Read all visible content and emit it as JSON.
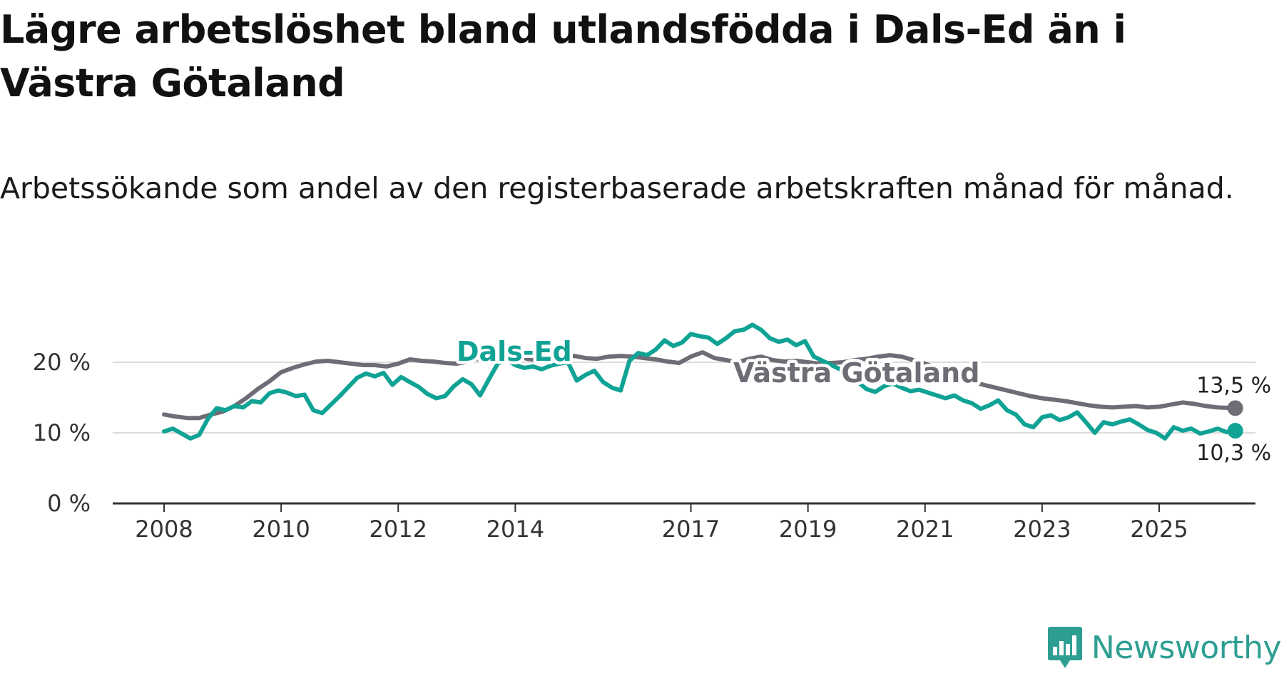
{
  "title": "Lägre arbetslöshet bland utlandsfödda i Dals-Ed än i Västra Götaland",
  "subtitle": "Arbetssökande som andel av den registerbaserade arbetskraften månad för månad.",
  "brand": {
    "name": "Newsworthy",
    "color": "#2e9e92",
    "icon": "newsworthy-logo-icon"
  },
  "colors": {
    "dals_ed": "#10a395",
    "vastra_gotaland": "#706c75",
    "gridline": "#dcdcdc",
    "axis": "#333333"
  },
  "chart_data": {
    "type": "line",
    "title": "Lägre arbetslöshet bland utlandsfödda i Dals-Ed än i Västra Götaland",
    "xlabel": "",
    "ylabel": "",
    "x_range": [
      2007.9,
      2026.75
    ],
    "ylim": [
      0,
      25
    ],
    "y_ticks": [
      0,
      10,
      20
    ],
    "y_tick_labels": [
      "0 %",
      "10 %",
      "20 %"
    ],
    "x_ticks": [
      2008,
      2010,
      2012,
      2014,
      2017,
      2019,
      2021,
      2023,
      2025
    ],
    "x_tick_labels": [
      "2008",
      "2010",
      "2012",
      "2014",
      "2017",
      "2019",
      "2021",
      "2023",
      "2025"
    ],
    "grid": true,
    "series": [
      {
        "name": "Västra Götaland",
        "label": "Västra Götaland",
        "end_label": "13,5 %",
        "color_key": "vastra_gotaland",
        "points": [
          [
            2008.0,
            12.6
          ],
          [
            2008.2,
            12.3
          ],
          [
            2008.4,
            12.1
          ],
          [
            2008.6,
            12.1
          ],
          [
            2008.8,
            12.6
          ],
          [
            2009.0,
            13.0
          ],
          [
            2009.2,
            13.8
          ],
          [
            2009.4,
            14.9
          ],
          [
            2009.6,
            16.2
          ],
          [
            2009.8,
            17.3
          ],
          [
            2010.0,
            18.6
          ],
          [
            2010.2,
            19.2
          ],
          [
            2010.4,
            19.7
          ],
          [
            2010.6,
            20.1
          ],
          [
            2010.8,
            20.2
          ],
          [
            2011.0,
            20.0
          ],
          [
            2011.2,
            19.8
          ],
          [
            2011.4,
            19.6
          ],
          [
            2011.6,
            19.6
          ],
          [
            2011.8,
            19.4
          ],
          [
            2012.0,
            19.8
          ],
          [
            2012.2,
            20.4
          ],
          [
            2012.4,
            20.2
          ],
          [
            2012.6,
            20.1
          ],
          [
            2012.8,
            19.9
          ],
          [
            2013.0,
            19.8
          ],
          [
            2013.2,
            20.1
          ],
          [
            2013.4,
            20.6
          ],
          [
            2013.6,
            20.8
          ],
          [
            2013.8,
            21.0
          ],
          [
            2014.0,
            20.9
          ],
          [
            2014.2,
            20.5
          ],
          [
            2014.4,
            20.3
          ],
          [
            2014.6,
            20.6
          ],
          [
            2014.8,
            21.0
          ],
          [
            2015.0,
            20.9
          ],
          [
            2015.2,
            20.6
          ],
          [
            2015.4,
            20.5
          ],
          [
            2015.6,
            20.8
          ],
          [
            2015.8,
            20.9
          ],
          [
            2016.0,
            20.8
          ],
          [
            2016.2,
            20.6
          ],
          [
            2016.4,
            20.4
          ],
          [
            2016.6,
            20.1
          ],
          [
            2016.8,
            19.9
          ],
          [
            2017.0,
            20.8
          ],
          [
            2017.2,
            21.4
          ],
          [
            2017.4,
            20.6
          ],
          [
            2017.6,
            20.3
          ],
          [
            2017.8,
            20.0
          ],
          [
            2018.0,
            20.5
          ],
          [
            2018.2,
            20.8
          ],
          [
            2018.4,
            20.3
          ],
          [
            2018.6,
            20.1
          ],
          [
            2018.8,
            20.2
          ],
          [
            2019.0,
            20.0
          ],
          [
            2019.2,
            19.8
          ],
          [
            2019.4,
            19.9
          ],
          [
            2019.6,
            20.0
          ],
          [
            2019.8,
            20.3
          ],
          [
            2020.0,
            20.5
          ],
          [
            2020.2,
            20.8
          ],
          [
            2020.4,
            21.0
          ],
          [
            2020.6,
            20.8
          ],
          [
            2020.8,
            20.3
          ],
          [
            2021.0,
            19.8
          ],
          [
            2021.2,
            19.2
          ],
          [
            2021.4,
            18.6
          ],
          [
            2021.6,
            17.9
          ],
          [
            2021.8,
            17.3
          ],
          [
            2022.0,
            16.8
          ],
          [
            2022.2,
            16.4
          ],
          [
            2022.4,
            16.0
          ],
          [
            2022.6,
            15.6
          ],
          [
            2022.8,
            15.2
          ],
          [
            2023.0,
            14.9
          ],
          [
            2023.2,
            14.7
          ],
          [
            2023.4,
            14.5
          ],
          [
            2023.6,
            14.2
          ],
          [
            2023.8,
            13.9
          ],
          [
            2024.0,
            13.7
          ],
          [
            2024.2,
            13.6
          ],
          [
            2024.4,
            13.7
          ],
          [
            2024.6,
            13.8
          ],
          [
            2024.8,
            13.6
          ],
          [
            2025.0,
            13.7
          ],
          [
            2025.2,
            14.0
          ],
          [
            2025.4,
            14.3
          ],
          [
            2025.6,
            14.1
          ],
          [
            2025.8,
            13.8
          ],
          [
            2026.0,
            13.6
          ],
          [
            2026.3,
            13.5
          ]
        ]
      },
      {
        "name": "Dals-Ed",
        "label": "Dals-Ed",
        "end_label": "10,3 %",
        "color_key": "dals_ed",
        "points": [
          [
            2008.0,
            10.2
          ],
          [
            2008.15,
            10.6
          ],
          [
            2008.3,
            9.9
          ],
          [
            2008.45,
            9.2
          ],
          [
            2008.6,
            9.7
          ],
          [
            2008.75,
            12.0
          ],
          [
            2008.9,
            13.5
          ],
          [
            2009.05,
            13.2
          ],
          [
            2009.2,
            13.8
          ],
          [
            2009.35,
            13.6
          ],
          [
            2009.5,
            14.5
          ],
          [
            2009.65,
            14.3
          ],
          [
            2009.8,
            15.6
          ],
          [
            2009.95,
            16.0
          ],
          [
            2010.1,
            15.7
          ],
          [
            2010.25,
            15.2
          ],
          [
            2010.4,
            15.4
          ],
          [
            2010.55,
            13.2
          ],
          [
            2010.7,
            12.8
          ],
          [
            2010.85,
            14.0
          ],
          [
            2011.0,
            15.2
          ],
          [
            2011.15,
            16.5
          ],
          [
            2011.3,
            17.8
          ],
          [
            2011.45,
            18.4
          ],
          [
            2011.6,
            18.0
          ],
          [
            2011.75,
            18.5
          ],
          [
            2011.9,
            16.8
          ],
          [
            2012.05,
            17.9
          ],
          [
            2012.2,
            17.2
          ],
          [
            2012.35,
            16.5
          ],
          [
            2012.5,
            15.5
          ],
          [
            2012.65,
            14.9
          ],
          [
            2012.8,
            15.2
          ],
          [
            2012.95,
            16.6
          ],
          [
            2013.1,
            17.6
          ],
          [
            2013.25,
            16.9
          ],
          [
            2013.4,
            15.3
          ],
          [
            2013.55,
            17.6
          ],
          [
            2013.7,
            19.8
          ],
          [
            2013.85,
            20.4
          ],
          [
            2014.0,
            19.6
          ],
          [
            2014.15,
            19.2
          ],
          [
            2014.3,
            19.4
          ],
          [
            2014.45,
            19.0
          ],
          [
            2014.6,
            19.5
          ],
          [
            2014.75,
            19.8
          ],
          [
            2014.9,
            20.0
          ],
          [
            2015.05,
            17.4
          ],
          [
            2015.2,
            18.2
          ],
          [
            2015.35,
            18.8
          ],
          [
            2015.5,
            17.2
          ],
          [
            2015.65,
            16.4
          ],
          [
            2015.8,
            16.0
          ],
          [
            2015.95,
            20.2
          ],
          [
            2016.1,
            21.3
          ],
          [
            2016.25,
            21.0
          ],
          [
            2016.4,
            21.8
          ],
          [
            2016.55,
            23.1
          ],
          [
            2016.7,
            22.3
          ],
          [
            2016.85,
            22.8
          ],
          [
            2017.0,
            24.0
          ],
          [
            2017.15,
            23.7
          ],
          [
            2017.3,
            23.5
          ],
          [
            2017.45,
            22.6
          ],
          [
            2017.6,
            23.4
          ],
          [
            2017.75,
            24.4
          ],
          [
            2017.9,
            24.6
          ],
          [
            2018.05,
            25.3
          ],
          [
            2018.2,
            24.6
          ],
          [
            2018.35,
            23.4
          ],
          [
            2018.5,
            22.9
          ],
          [
            2018.65,
            23.2
          ],
          [
            2018.8,
            22.4
          ],
          [
            2018.95,
            23.0
          ],
          [
            2019.1,
            20.8
          ],
          [
            2019.25,
            20.2
          ],
          [
            2019.4,
            19.6
          ],
          [
            2019.55,
            19.0
          ],
          [
            2019.7,
            18.2
          ],
          [
            2019.85,
            17.2
          ],
          [
            2020.0,
            16.2
          ],
          [
            2020.15,
            15.8
          ],
          [
            2020.3,
            16.6
          ],
          [
            2020.45,
            17.0
          ],
          [
            2020.6,
            16.4
          ],
          [
            2020.75,
            15.9
          ],
          [
            2020.9,
            16.1
          ],
          [
            2021.05,
            15.7
          ],
          [
            2021.2,
            15.3
          ],
          [
            2021.35,
            14.9
          ],
          [
            2021.5,
            15.3
          ],
          [
            2021.65,
            14.6
          ],
          [
            2021.8,
            14.2
          ],
          [
            2021.95,
            13.4
          ],
          [
            2022.1,
            13.9
          ],
          [
            2022.25,
            14.6
          ],
          [
            2022.4,
            13.2
          ],
          [
            2022.55,
            12.6
          ],
          [
            2022.7,
            11.2
          ],
          [
            2022.85,
            10.8
          ],
          [
            2023.0,
            12.2
          ],
          [
            2023.15,
            12.5
          ],
          [
            2023.3,
            11.8
          ],
          [
            2023.45,
            12.2
          ],
          [
            2023.6,
            12.9
          ],
          [
            2023.75,
            11.5
          ],
          [
            2023.9,
            10.0
          ],
          [
            2024.05,
            11.5
          ],
          [
            2024.2,
            11.2
          ],
          [
            2024.35,
            11.6
          ],
          [
            2024.5,
            11.9
          ],
          [
            2024.65,
            11.2
          ],
          [
            2024.8,
            10.4
          ],
          [
            2024.95,
            10.0
          ],
          [
            2025.1,
            9.2
          ],
          [
            2025.25,
            10.8
          ],
          [
            2025.4,
            10.3
          ],
          [
            2025.55,
            10.6
          ],
          [
            2025.7,
            9.9
          ],
          [
            2025.85,
            10.2
          ],
          [
            2026.0,
            10.6
          ],
          [
            2026.15,
            10.1
          ],
          [
            2026.3,
            10.3
          ]
        ]
      }
    ]
  }
}
